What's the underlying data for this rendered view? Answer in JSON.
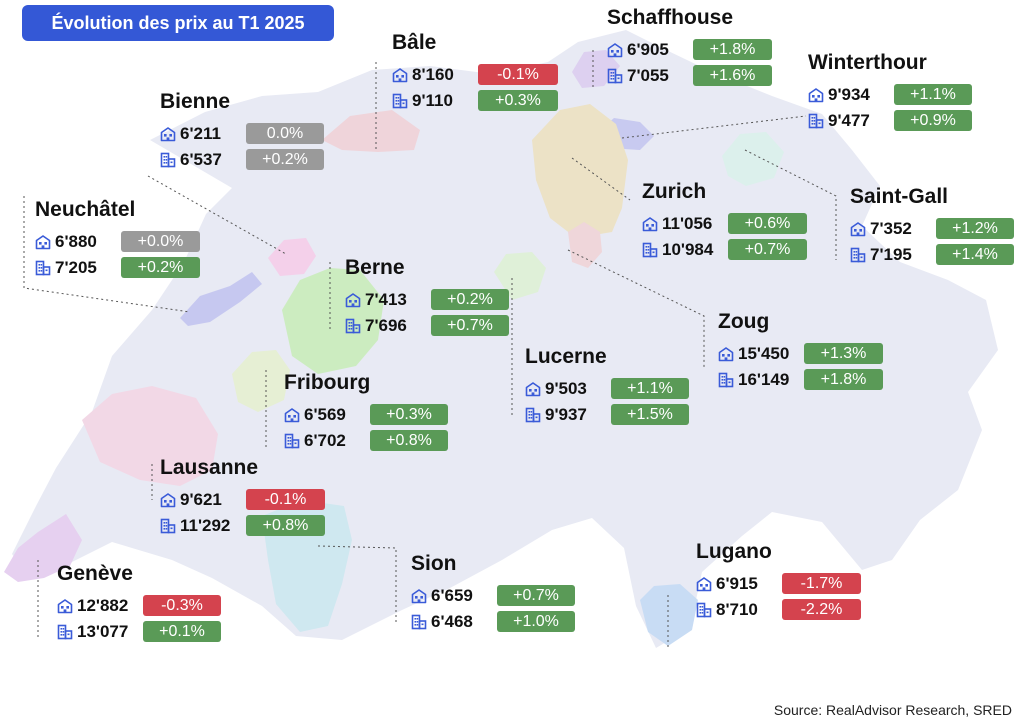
{
  "title": "Évolution des prix au T1 2025",
  "source": "Source: RealAdvisor Research, SRED",
  "colors": {
    "positive": "#5a9a57",
    "negative": "#d4434e",
    "neutral": "#9a9a9a",
    "title_bg": "#3458d6",
    "icon": "#3a5bd8",
    "country": "#e8eaf4"
  },
  "icons": {
    "apartment": "apartment-icon",
    "house": "house-icon"
  },
  "cities": [
    {
      "name": "Bâle",
      "apartment_price": "8'160",
      "apartment_change": "-0.1%",
      "apartment_trend": "negative",
      "house_price": "9'110",
      "house_change": "+0.3%",
      "house_trend": "positive"
    },
    {
      "name": "Schaffhouse",
      "apartment_price": "6'905",
      "apartment_change": "+1.8%",
      "apartment_trend": "positive",
      "house_price": "7'055",
      "house_change": "+1.6%",
      "house_trend": "positive"
    },
    {
      "name": "Winterthour",
      "apartment_price": "9'934",
      "apartment_change": "+1.1%",
      "apartment_trend": "positive",
      "house_price": "9'477",
      "house_change": "+0.9%",
      "house_trend": "positive"
    },
    {
      "name": "Bienne",
      "apartment_price": "6'211",
      "apartment_change": "0.0%",
      "apartment_trend": "neutral",
      "house_price": "6'537",
      "house_change": "+0.2%",
      "house_trend": "neutral"
    },
    {
      "name": "Neuchâtel",
      "apartment_price": "6'880",
      "apartment_change": "+0.0%",
      "apartment_trend": "neutral",
      "house_price": "7'205",
      "house_change": "+0.2%",
      "house_trend": "positive"
    },
    {
      "name": "Zurich",
      "apartment_price": "11'056",
      "apartment_change": "+0.6%",
      "apartment_trend": "positive",
      "house_price": "10'984",
      "house_change": "+0.7%",
      "house_trend": "positive"
    },
    {
      "name": "Saint-Gall",
      "apartment_price": "7'352",
      "apartment_change": "+1.2%",
      "apartment_trend": "positive",
      "house_price": "7'195",
      "house_change": "+1.4%",
      "house_trend": "positive"
    },
    {
      "name": "Berne",
      "apartment_price": "7'413",
      "apartment_change": "+0.2%",
      "apartment_trend": "positive",
      "house_price": "7'696",
      "house_change": "+0.7%",
      "house_trend": "positive"
    },
    {
      "name": "Zoug",
      "apartment_price": "15'450",
      "apartment_change": "+1.3%",
      "apartment_trend": "positive",
      "house_price": "16'149",
      "house_change": "+1.8%",
      "house_trend": "positive"
    },
    {
      "name": "Lucerne",
      "apartment_price": "9'503",
      "apartment_change": "+1.1%",
      "apartment_trend": "positive",
      "house_price": "9'937",
      "house_change": "+1.5%",
      "house_trend": "positive"
    },
    {
      "name": "Fribourg",
      "apartment_price": "6'569",
      "apartment_change": "+0.3%",
      "apartment_trend": "positive",
      "house_price": "6'702",
      "house_change": "+0.8%",
      "house_trend": "positive"
    },
    {
      "name": "Lausanne",
      "apartment_price": "9'621",
      "apartment_change": "-0.1%",
      "apartment_trend": "negative",
      "house_price": "11'292",
      "house_change": "+0.8%",
      "house_trend": "positive"
    },
    {
      "name": "Lugano",
      "apartment_price": "6'915",
      "apartment_change": "-1.7%",
      "apartment_trend": "negative",
      "house_price": "8'710",
      "house_change": "-2.2%",
      "house_trend": "negative"
    },
    {
      "name": "Genève",
      "apartment_price": "12'882",
      "apartment_change": "-0.3%",
      "apartment_trend": "negative",
      "house_price": "13'077",
      "house_change": "+0.1%",
      "house_trend": "positive"
    },
    {
      "name": "Sion",
      "apartment_price": "6'659",
      "apartment_change": "+0.7%",
      "apartment_trend": "positive",
      "house_price": "6'468",
      "house_change": "+1.0%",
      "house_trend": "positive"
    }
  ]
}
